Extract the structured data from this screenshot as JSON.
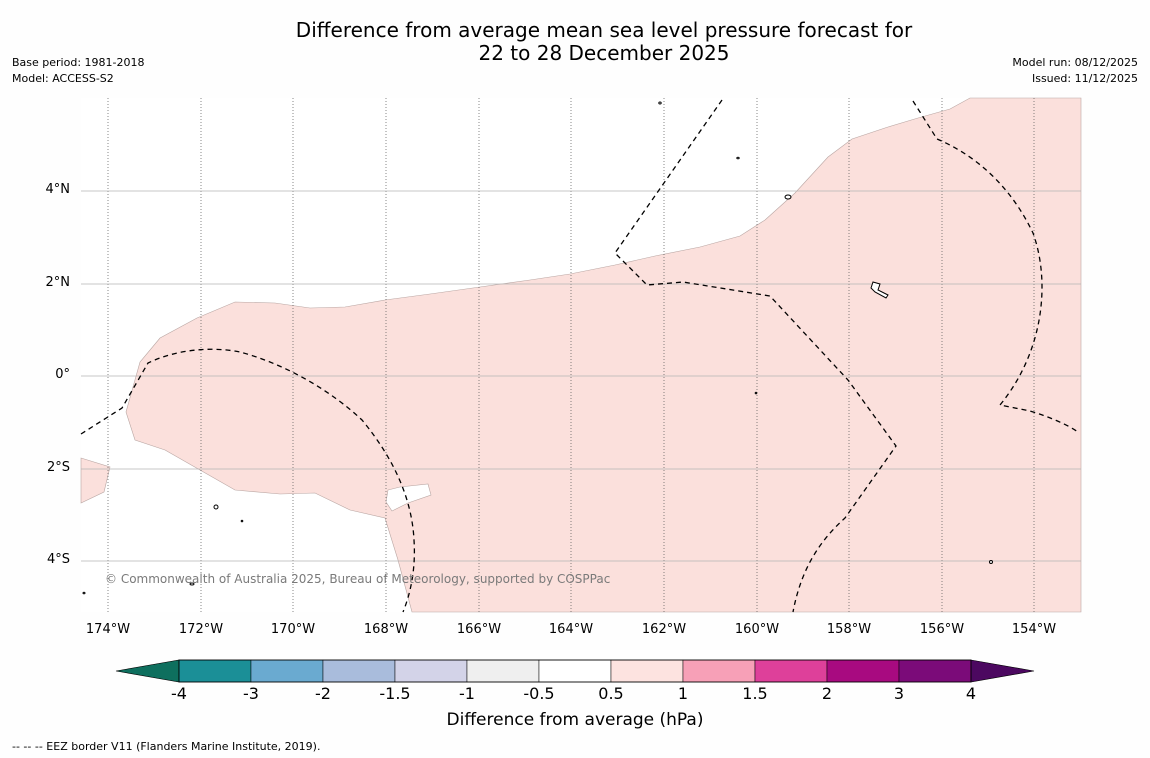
{
  "header": {
    "title_line1": "Difference from average mean sea level pressure forecast for",
    "title_line2": "22 to 28 December 2025",
    "base_period": "Base period: 1981-2018",
    "model": "Model: ACCESS-S2",
    "model_run": "Model run: 08/12/2025",
    "issued": "Issued: 11/12/2025"
  },
  "map": {
    "lon_labels": [
      "174°W",
      "172°W",
      "170°W",
      "168°W",
      "166°W",
      "164°W",
      "162°W",
      "160°W",
      "158°W",
      "156°W",
      "154°W"
    ],
    "lat_labels": [
      "4°N",
      "2°N",
      "0°",
      "2°S",
      "4°S"
    ],
    "anomaly_fill_color": "#fbe0dc",
    "copyright": "© Commonwealth of Australia 2025, Bureau of Meteorology, supported by COSPPac"
  },
  "colorbar": {
    "ticks": [
      "-4",
      "-3",
      "-2",
      "-1.5",
      "-1",
      "-0.5",
      "0.5",
      "1",
      "1.5",
      "2",
      "3",
      "4"
    ],
    "colors": [
      "#0e6f5e",
      "#1b8f97",
      "#6aaad0",
      "#a9bcdc",
      "#d3d3e8",
      "#efefef",
      "#ffffff",
      "#fde3e0",
      "#f7a0b7",
      "#de409a",
      "#a80a80",
      "#7b0b79",
      "#4c0860"
    ],
    "label": "Difference from average (hPa)"
  },
  "footnote": "--  --  -- EEZ border V11 (Flanders Marine Institute, 2019)."
}
